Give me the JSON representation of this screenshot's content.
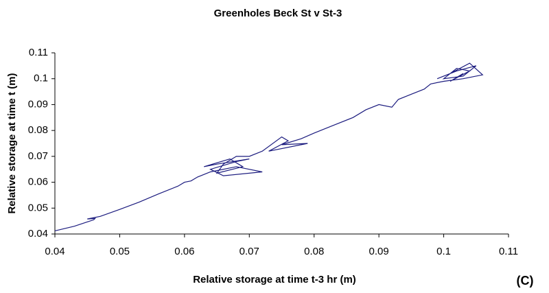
{
  "chart_data": {
    "type": "line",
    "title": "Greenholes Beck St v St-3",
    "x_label": "Relative storage at time t-3 hr (m)",
    "y_label": "Relative storage at time t (m)",
    "annotation": "(C)",
    "color": "#1a1a7e",
    "x": [
      0.04,
      0.043,
      0.046,
      0.0462,
      0.045,
      0.047,
      0.05,
      0.053,
      0.056,
      0.059,
      0.06,
      0.061,
      0.062,
      0.064,
      0.068,
      0.072,
      0.066,
      0.064,
      0.068,
      0.07,
      0.065,
      0.063,
      0.067,
      0.069,
      0.065,
      0.066,
      0.068,
      0.07,
      0.072,
      0.075,
      0.076,
      0.073,
      0.079,
      0.075,
      0.078,
      0.08,
      0.083,
      0.086,
      0.088,
      0.09,
      0.092,
      0.093,
      0.095,
      0.097,
      0.098,
      0.1,
      0.103,
      0.106,
      0.104,
      0.101,
      0.099,
      0.102,
      0.105,
      0.103,
      0.1,
      0.102,
      0.104,
      0.101,
      0.103
    ],
    "values": [
      0.0412,
      0.043,
      0.0455,
      0.046,
      0.0458,
      0.0468,
      0.0495,
      0.0523,
      0.0555,
      0.0585,
      0.06,
      0.0605,
      0.062,
      0.064,
      0.066,
      0.064,
      0.0625,
      0.065,
      0.068,
      0.069,
      0.067,
      0.066,
      0.069,
      0.066,
      0.0635,
      0.067,
      0.07,
      0.07,
      0.072,
      0.0775,
      0.076,
      0.072,
      0.075,
      0.0745,
      0.0768,
      0.079,
      0.082,
      0.085,
      0.088,
      0.09,
      0.089,
      0.092,
      0.094,
      0.096,
      0.098,
      0.099,
      0.1,
      0.1015,
      0.106,
      0.102,
      0.1,
      0.103,
      0.105,
      0.101,
      0.1,
      0.104,
      0.103,
      0.099,
      0.102
    ],
    "xlim": [
      0.04,
      0.11
    ],
    "ylim": [
      0.04,
      0.11
    ],
    "xticks": [
      0.04,
      0.05,
      0.06,
      0.07,
      0.08,
      0.09,
      0.1,
      0.11
    ],
    "yticks": [
      0.04,
      0.05,
      0.06,
      0.07,
      0.08,
      0.09,
      0.1,
      0.11
    ]
  }
}
